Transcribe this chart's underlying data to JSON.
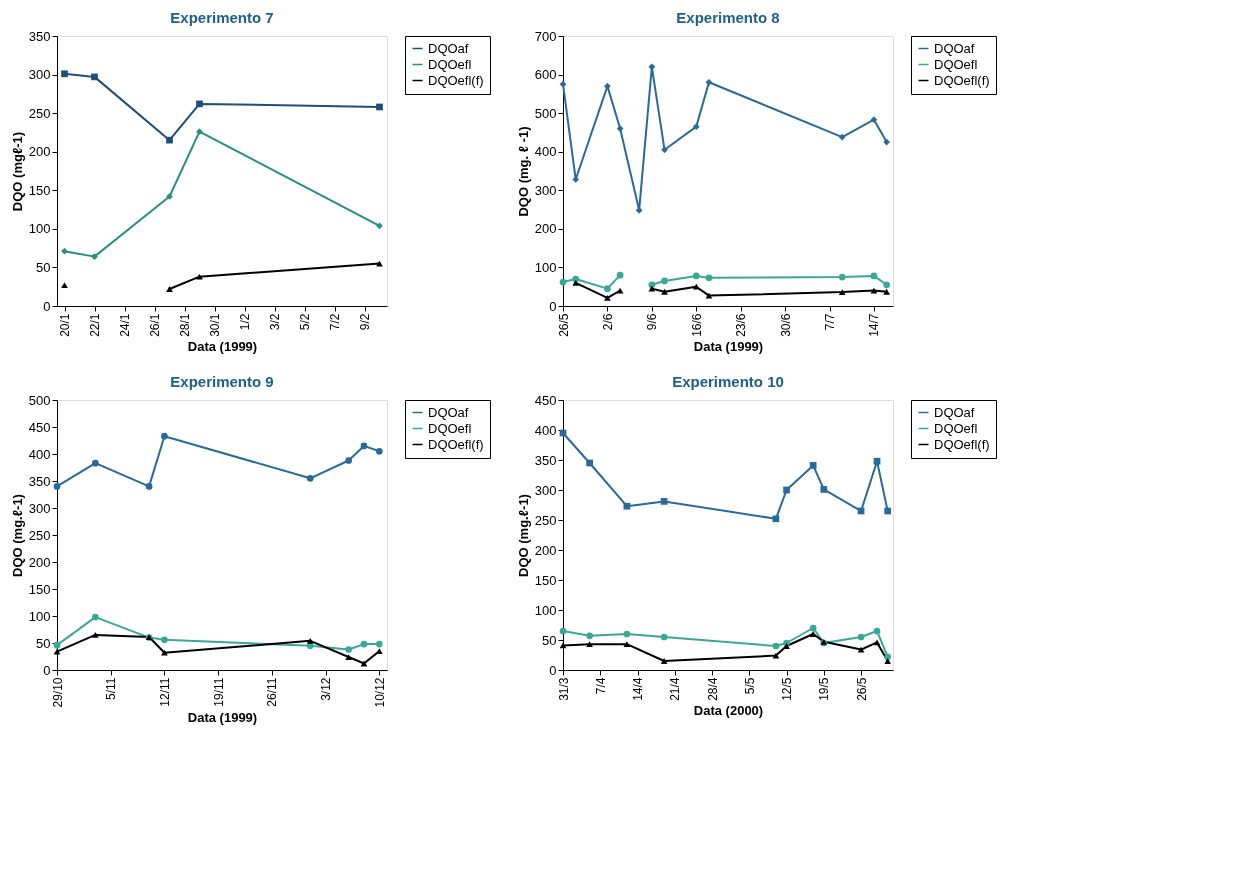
{
  "chart_data": [
    {
      "type": "line",
      "title": "Experimento 7",
      "xlabel": "Data (1999)",
      "ylabel": "DQO (mgℓ-1)",
      "legend": "top right",
      "grid": false,
      "line_style": "solid",
      "x": [
        "1999-01-20",
        "1999-01-22",
        "1999-01-27",
        "1999-01-29",
        "1999-02-10"
      ],
      "xlim": [
        "1999-01-19T12:00",
        "1999-02-10T12:00"
      ],
      "xticks": [
        {
          "value": "1999-01-20",
          "label": "20/1"
        },
        {
          "value": "1999-01-22",
          "label": "22/1"
        },
        {
          "value": "1999-01-24",
          "label": "24/1"
        },
        {
          "value": "1999-01-26",
          "label": "26/1"
        },
        {
          "value": "1999-01-28",
          "label": "28/1"
        },
        {
          "value": "1999-01-30",
          "label": "30/1"
        },
        {
          "value": "1999-02-01",
          "label": "1/2"
        },
        {
          "value": "1999-02-03",
          "label": "3/2"
        },
        {
          "value": "1999-02-05",
          "label": "5/2"
        },
        {
          "value": "1999-02-07",
          "label": "7/2"
        },
        {
          "value": "1999-02-09",
          "label": "9/2"
        }
      ],
      "ylim": [
        0,
        350
      ],
      "yticks": [
        0,
        50,
        100,
        150,
        200,
        250,
        300,
        350
      ],
      "series": [
        {
          "name": "DQOaf",
          "color": "#1f4e79",
          "marker": "square",
          "values": [
            301,
            297,
            215,
            262,
            258
          ]
        },
        {
          "name": "DQOefl",
          "color": "#2a8f7c",
          "marker": "diamond",
          "values": [
            71,
            64,
            142,
            226,
            104
          ]
        },
        {
          "name": "DQOefl(f)",
          "color": "#000000",
          "marker": "triangle",
          "values": [
            27,
            null,
            22,
            38,
            55
          ]
        }
      ]
    },
    {
      "type": "line",
      "title": "Experimento 8",
      "xlabel": "Data (1999)",
      "ylabel": "DQO (mg. ℓ -1)",
      "legend": "top right",
      "grid": false,
      "line_style": "solid",
      "x": [
        "1999-05-26",
        "1999-05-28",
        "1999-06-02",
        "1999-06-04",
        "1999-06-07",
        "1999-06-09",
        "1999-06-11",
        "1999-06-16",
        "1999-06-18",
        "1999-07-09",
        "1999-07-14",
        "1999-07-16"
      ],
      "xlim": [
        "1999-05-26",
        "1999-07-17"
      ],
      "xticks": [
        {
          "value": "1999-05-26",
          "label": "26/5"
        },
        {
          "value": "1999-06-02",
          "label": "2/6"
        },
        {
          "value": "1999-06-09",
          "label": "9/6"
        },
        {
          "value": "1999-06-16",
          "label": "16/6"
        },
        {
          "value": "1999-06-23",
          "label": "23/6"
        },
        {
          "value": "1999-06-30",
          "label": "30/6"
        },
        {
          "value": "1999-07-07",
          "label": "7/7"
        },
        {
          "value": "1999-07-14",
          "label": "14/7"
        }
      ],
      "ylim": [
        0,
        700
      ],
      "yticks": [
        0,
        100,
        200,
        300,
        400,
        500,
        600,
        700
      ],
      "series": [
        {
          "name": "DQOaf",
          "color": "#2a6a9a",
          "marker": "diamond",
          "values": [
            575,
            328,
            570,
            460,
            248,
            620,
            405,
            465,
            580,
            438,
            483,
            425
          ]
        },
        {
          "name": "DQOefl",
          "color": "#3aa898",
          "marker": "circle",
          "values": [
            62,
            70,
            45,
            80,
            null,
            55,
            65,
            78,
            73,
            75,
            78,
            55
          ]
        },
        {
          "name": "DQOefl(f)",
          "color": "#000000",
          "marker": "triangle",
          "values": [
            null,
            60,
            21,
            40,
            null,
            45,
            37,
            50,
            27,
            36,
            40,
            37
          ]
        }
      ]
    },
    {
      "type": "line",
      "title": "Experimento 9",
      "xlabel": "Data (1999)",
      "ylabel": "DQO (mg.ℓ-1)",
      "legend": "top right",
      "grid": false,
      "line_style": "solid",
      "x": [
        "1999-10-29",
        "1999-11-03",
        "1999-11-10",
        "1999-11-12",
        "1999-12-01",
        "1999-12-06",
        "1999-12-08",
        "1999-12-10"
      ],
      "xlim": [
        "1999-10-29",
        "1999-12-11"
      ],
      "xticks": [
        {
          "value": "1999-10-29",
          "label": "29/10"
        },
        {
          "value": "1999-11-05",
          "label": "5/11"
        },
        {
          "value": "1999-11-12",
          "label": "12/11"
        },
        {
          "value": "1999-11-19",
          "label": "19/11"
        },
        {
          "value": "1999-11-26",
          "label": "26/11"
        },
        {
          "value": "1999-12-03",
          "label": "3/12"
        },
        {
          "value": "1999-12-10",
          "label": "10/12"
        }
      ],
      "ylim": [
        0,
        500
      ],
      "yticks": [
        0,
        50,
        100,
        150,
        200,
        250,
        300,
        350,
        400,
        450,
        500
      ],
      "series": [
        {
          "name": "DQOaf",
          "color": "#2a6a9a",
          "marker": "circle",
          "values": [
            340,
            383,
            340,
            433,
            355,
            388,
            415,
            405
          ]
        },
        {
          "name": "DQOefl",
          "color": "#3aa898",
          "marker": "circle",
          "values": [
            46,
            98,
            60,
            56,
            45,
            38,
            48,
            48
          ]
        },
        {
          "name": "DQOefl(f)",
          "color": "#000000",
          "marker": "triangle",
          "values": [
            34,
            65,
            61,
            32,
            54,
            24,
            12,
            35
          ]
        }
      ]
    },
    {
      "type": "line",
      "title": "Experimento 10",
      "xlabel": "Data (2000)",
      "ylabel": "DQO (mg.ℓ-1)",
      "legend": "top right",
      "grid": false,
      "line_style": "solid",
      "x": [
        "2000-03-31",
        "2000-04-05",
        "2000-04-12",
        "2000-04-19",
        "2000-05-10",
        "2000-05-12",
        "2000-05-17",
        "2000-05-19",
        "2000-05-26",
        "2000-05-29",
        "2000-05-31"
      ],
      "xlim": [
        "2000-03-31",
        "2000-06-01"
      ],
      "xticks": [
        {
          "value": "2000-03-31",
          "label": "31/3"
        },
        {
          "value": "2000-04-07",
          "label": "7/4"
        },
        {
          "value": "2000-04-14",
          "label": "14/4"
        },
        {
          "value": "2000-04-21",
          "label": "21/4"
        },
        {
          "value": "2000-04-28",
          "label": "28/4"
        },
        {
          "value": "2000-05-05",
          "label": "5/5"
        },
        {
          "value": "2000-05-12",
          "label": "12/5"
        },
        {
          "value": "2000-05-19",
          "label": "19/5"
        },
        {
          "value": "2000-05-26",
          "label": "26/5"
        }
      ],
      "ylim": [
        0,
        450
      ],
      "yticks": [
        0,
        50,
        100,
        150,
        200,
        250,
        300,
        350,
        400,
        450
      ],
      "series": [
        {
          "name": "DQOaf",
          "color": "#2a6a9a",
          "marker": "square",
          "values": [
            395,
            345,
            273,
            281,
            252,
            300,
            341,
            301,
            265,
            348,
            265
          ]
        },
        {
          "name": "DQOefl",
          "color": "#3aa898",
          "marker": "circle",
          "values": [
            65,
            57,
            60,
            55,
            40,
            45,
            70,
            45,
            55,
            65,
            22
          ]
        },
        {
          "name": "DQOefl(f)",
          "color": "#000000",
          "marker": "triangle",
          "values": [
            41,
            43,
            43,
            15,
            24,
            40,
            60,
            47,
            34,
            46,
            15
          ]
        }
      ]
    }
  ]
}
